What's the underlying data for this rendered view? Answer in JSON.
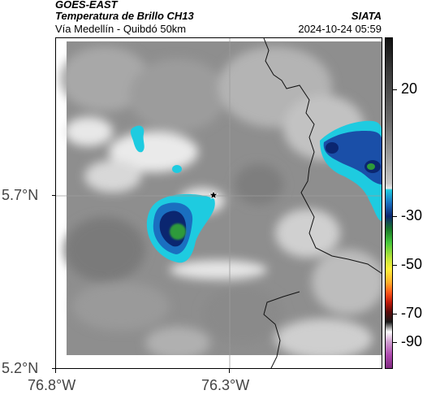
{
  "header": {
    "satellite": "GOES-EAST",
    "product": "Temperatura de Brillo CH13",
    "location": "Vía Medellín - Quibdó 50km",
    "org": "SIATA",
    "datetime": "2024-10-24 05:59"
  },
  "axes": {
    "y_ticks": [
      "5.7°N",
      "5.2°N"
    ],
    "x_ticks": [
      "76.8°W",
      "76.3°W"
    ]
  },
  "colorbar": {
    "ticks": [
      "20",
      "-30",
      "-50",
      "-70",
      "-90"
    ]
  },
  "colors": {
    "cloud_gray": "#9a9a9a",
    "bright_gray": "#f0f0f0",
    "cold_cyan": "#1ecbe0",
    "cold_blue": "#1a4fa8",
    "cold_navy": "#0b2670",
    "cold_green": "#2e9a3a",
    "marker": "#000000"
  },
  "icons": {
    "site_marker": "star-icon"
  }
}
